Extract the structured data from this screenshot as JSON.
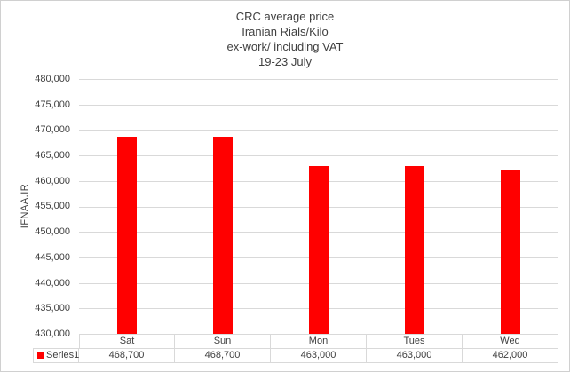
{
  "title": {
    "lines": [
      "CRC  average  price",
      "Iranian  Rials/Kilo",
      "ex-work/  including VAT",
      "19-23  July"
    ]
  },
  "chart_data": {
    "type": "bar",
    "title": "CRC average price Iranian Rials/Kilo ex-work/ including VAT 19-23 July",
    "categories": [
      "Sat",
      "Sun",
      "Mon",
      "Tues",
      "Wed"
    ],
    "series": [
      {
        "name": "Series1",
        "values": [
          468700,
          468700,
          463000,
          463000,
          462000
        ]
      }
    ],
    "values": [
      468700,
      468700,
      463000,
      463000,
      462000
    ],
    "value_labels": [
      "468,700",
      "468,700",
      "463,000",
      "463,000",
      "462,000"
    ],
    "series_name": "Series1",
    "xlabel": "",
    "ylabel": "IFNAA.IR",
    "ylim": [
      430000,
      480000
    ],
    "ytick_step": 5000,
    "ytick_labels": [
      "480,000",
      "475,000",
      "470,000",
      "465,000",
      "460,000",
      "455,000",
      "450,000",
      "445,000",
      "440,000",
      "435,000",
      "430,000"
    ],
    "grid": true,
    "legend_position": "bottom-left-table"
  },
  "colors": {
    "bar": "#ff0000",
    "gridline": "#d9d9d9",
    "table_border": "#d9d9d9",
    "text": "#404040",
    "outer_border": "#d0d0d0"
  }
}
